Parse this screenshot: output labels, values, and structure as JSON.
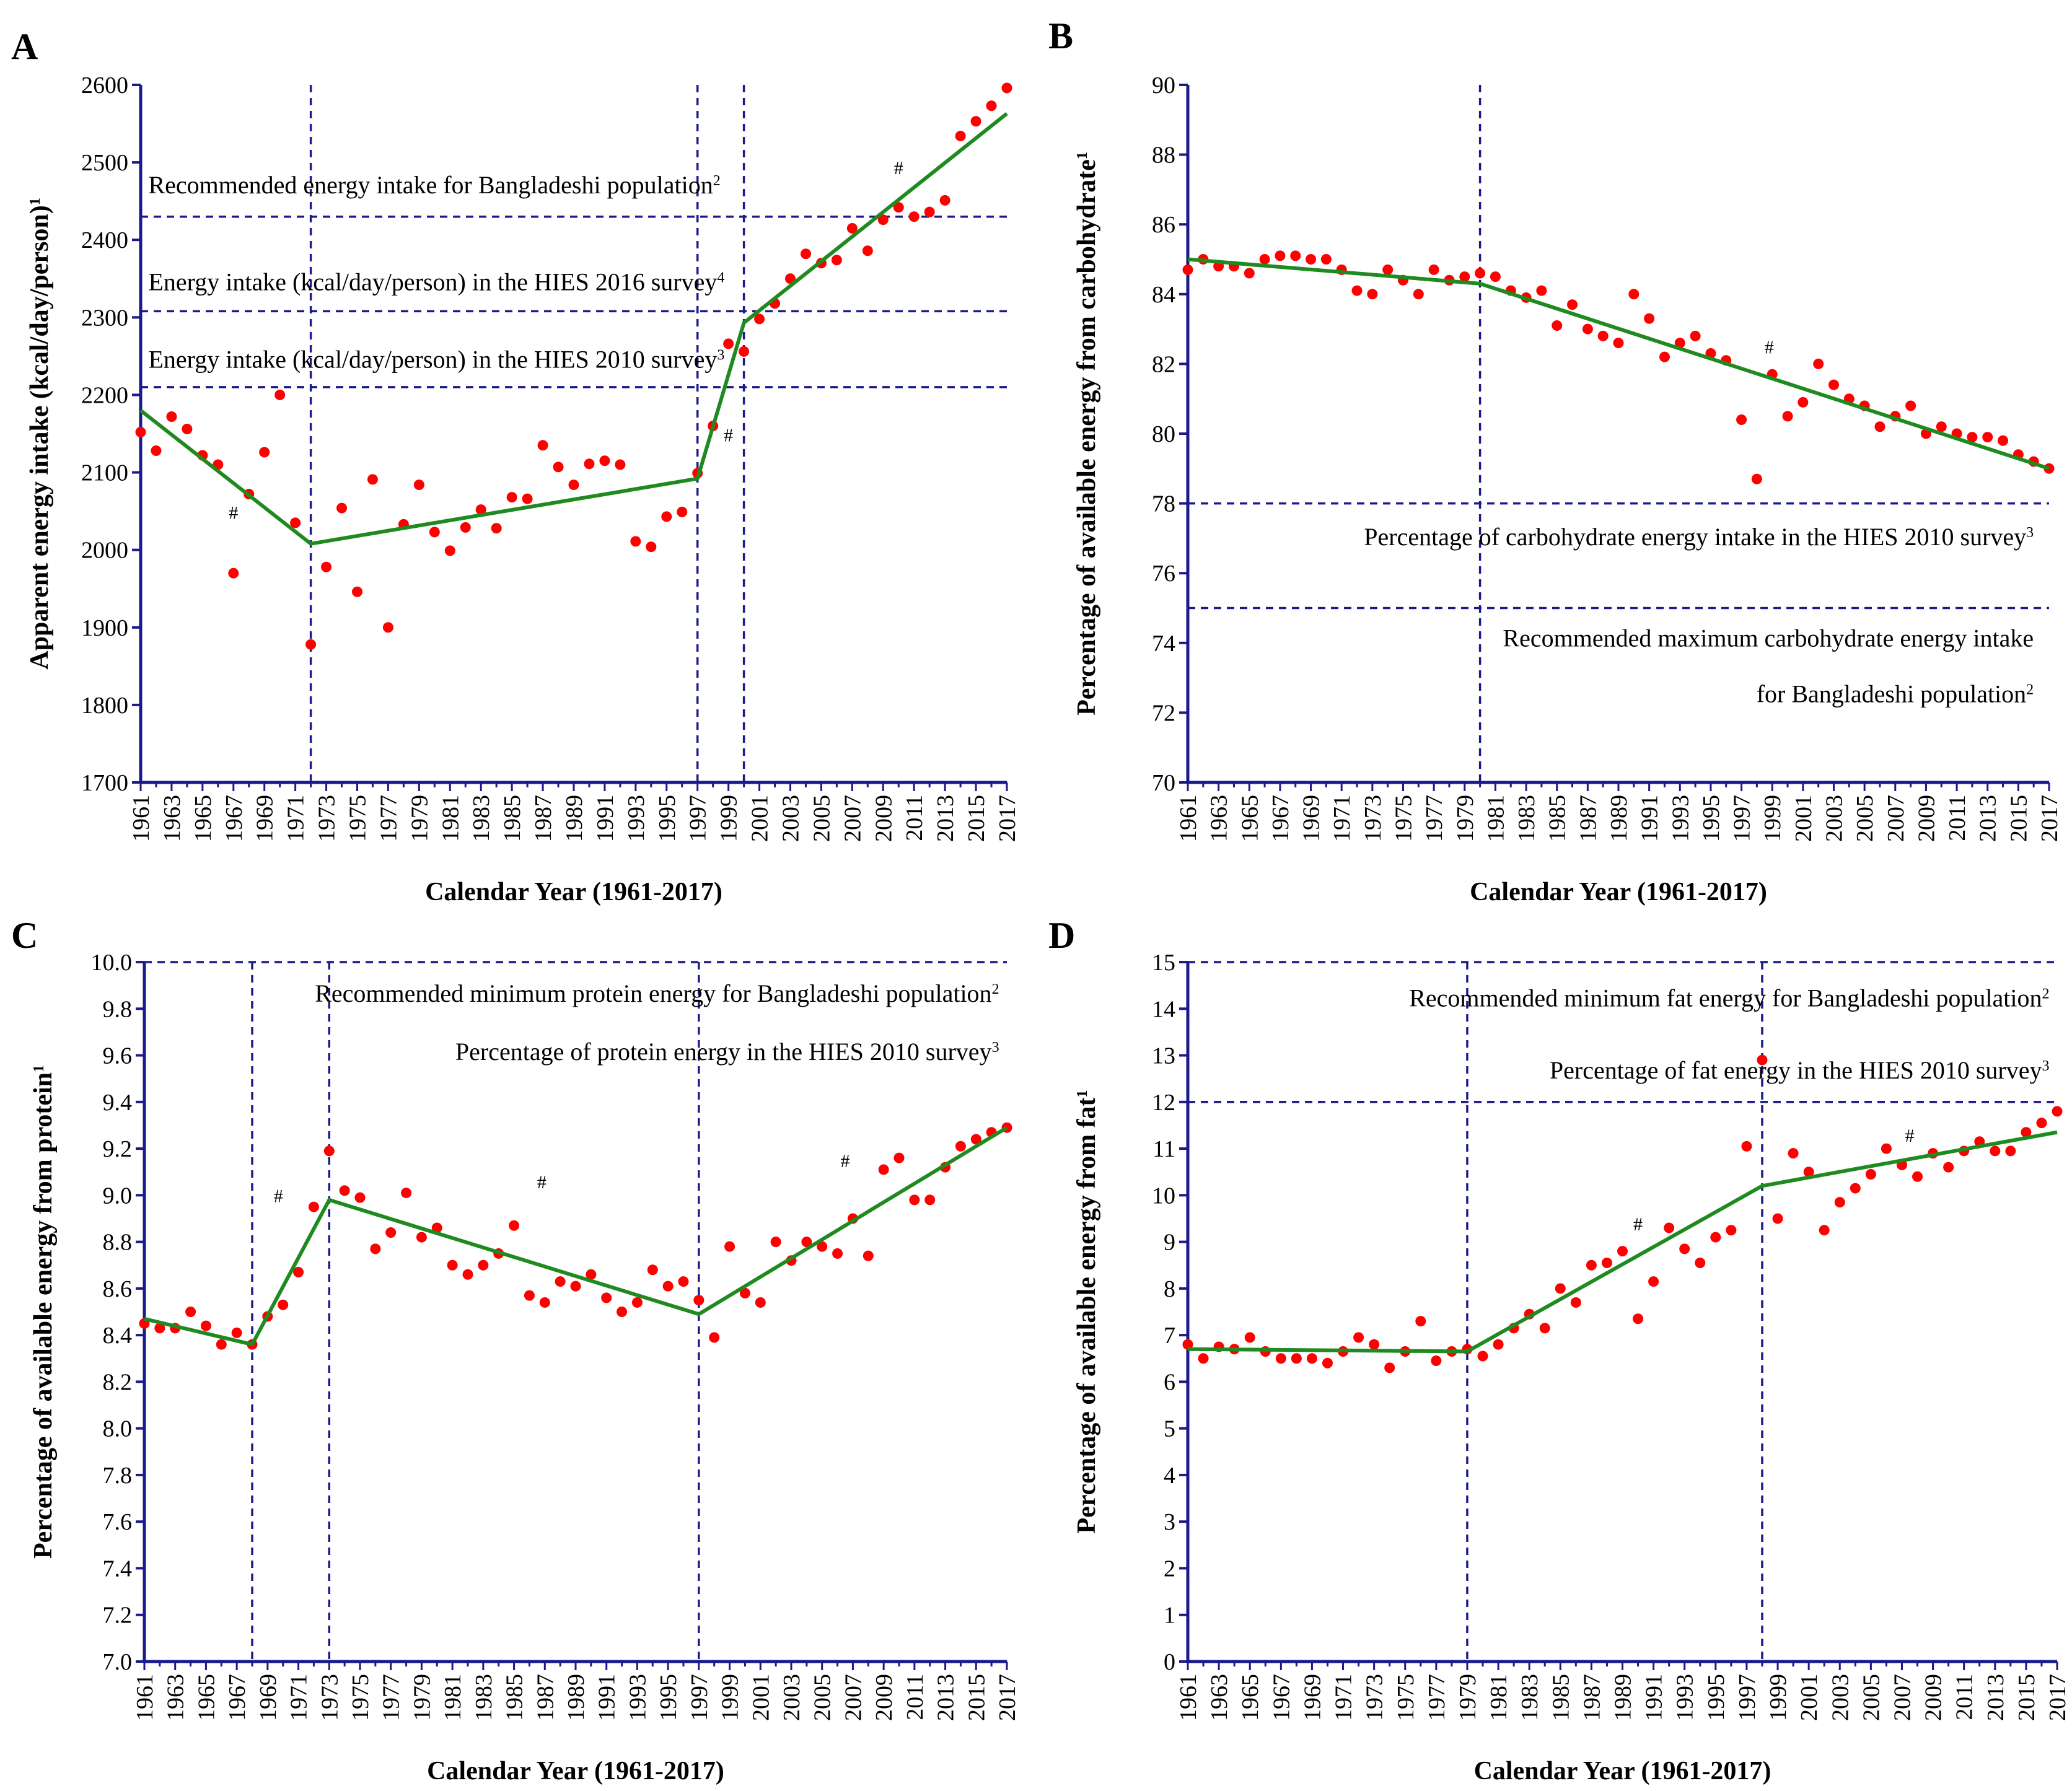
{
  "colors": {
    "axis": "#1a1a8c",
    "ref_line": "#1a1a8c",
    "points": "#ff0000",
    "trend": "#1f8a1f"
  },
  "chart_data": [
    {
      "panel": "A",
      "type": "scatter",
      "xlabel": "Calendar Year (1961-2017)",
      "ylabel": "Apparent energy intake (kcal/day/person)",
      "ylabel_sup": "1",
      "ylim": [
        1700,
        2600
      ],
      "yticks": [
        1700,
        1800,
        1900,
        2000,
        2100,
        2200,
        2300,
        2400,
        2500,
        2600
      ],
      "xticks": [
        1961,
        1963,
        1965,
        1967,
        1969,
        1971,
        1973,
        1975,
        1977,
        1979,
        1981,
        1983,
        1985,
        1987,
        1989,
        1991,
        1993,
        1995,
        1997,
        1999,
        2001,
        2003,
        2005,
        2007,
        2009,
        2011,
        2013,
        2015,
        2017
      ],
      "x": [
        1961,
        1962,
        1963,
        1964,
        1965,
        1966,
        1967,
        1968,
        1969,
        1970,
        1971,
        1972,
        1973,
        1974,
        1975,
        1976,
        1977,
        1978,
        1979,
        1980,
        1981,
        1982,
        1983,
        1984,
        1985,
        1986,
        1987,
        1988,
        1989,
        1990,
        1991,
        1992,
        1993,
        1994,
        1995,
        1996,
        1997,
        1998,
        1999,
        2000,
        2001,
        2002,
        2003,
        2004,
        2005,
        2006,
        2007,
        2008,
        2009,
        2010,
        2011,
        2012,
        2013,
        2014,
        2015,
        2016,
        2017
      ],
      "y": [
        2152,
        2128,
        2172,
        2156,
        2122,
        2110,
        1970,
        2072,
        2126,
        2200,
        2035,
        1878,
        1978,
        2054,
        1946,
        2091,
        1900,
        2033,
        2084,
        2023,
        1999,
        2029,
        2052,
        2028,
        2068,
        2066,
        2135,
        2107,
        2084,
        2111,
        2115,
        2110,
        2011,
        2004,
        2043,
        2049,
        2099,
        2160,
        2266,
        2256,
        2298,
        2318,
        2350,
        2382,
        2370,
        2374,
        2415,
        2386,
        2426,
        2442,
        2430,
        2436,
        2451,
        2534,
        2553,
        2573,
        2596
      ],
      "trend": [
        [
          1961,
          2180
        ],
        [
          1972,
          2008
        ],
        [
          1997,
          2092
        ],
        [
          2000,
          2293
        ],
        [
          2017,
          2563
        ]
      ],
      "vlines": [
        1972,
        1997,
        2000
      ],
      "hlines": [
        2430,
        2308,
        2210
      ],
      "hash_marks": [
        {
          "x": 1967,
          "y": 2040
        },
        {
          "x": 1999,
          "y": 2140
        },
        {
          "x": 2010,
          "y": 2485
        }
      ],
      "annotations": [
        {
          "text": "Recommended energy intake for Bangladeshi population",
          "sup": "2",
          "x": 1961.5,
          "y": 2460,
          "anchor": "start"
        },
        {
          "text": "Energy intake (kcal/day/person) in the HIES 2016 survey",
          "sup": "4",
          "x": 1961.5,
          "y": 2335,
          "anchor": "start"
        },
        {
          "text": "Energy intake (kcal/day/person) in the HIES 2010 survey",
          "sup": "3",
          "x": 1961.5,
          "y": 2235,
          "anchor": "start"
        }
      ]
    },
    {
      "panel": "B",
      "type": "scatter",
      "xlabel": "Calendar Year (1961-2017)",
      "ylabel": "Percentage of available energy from carbohydrate",
      "ylabel_sup": "1",
      "ylim": [
        70,
        90
      ],
      "yticks": [
        70,
        72,
        74,
        76,
        78,
        80,
        82,
        84,
        86,
        88,
        90
      ],
      "xticks": [
        1961,
        1963,
        1965,
        1967,
        1969,
        1971,
        1973,
        1975,
        1977,
        1979,
        1981,
        1983,
        1985,
        1987,
        1989,
        1991,
        1993,
        1995,
        1997,
        1999,
        2001,
        2003,
        2005,
        2007,
        2009,
        2011,
        2013,
        2015,
        2017
      ],
      "x": [
        1961,
        1962,
        1963,
        1964,
        1965,
        1966,
        1967,
        1968,
        1969,
        1970,
        1971,
        1972,
        1973,
        1974,
        1975,
        1976,
        1977,
        1978,
        1979,
        1980,
        1981,
        1982,
        1983,
        1984,
        1985,
        1986,
        1987,
        1988,
        1989,
        1990,
        1991,
        1992,
        1993,
        1994,
        1995,
        1996,
        1997,
        1998,
        1999,
        2000,
        2001,
        2002,
        2003,
        2004,
        2005,
        2006,
        2007,
        2008,
        2009,
        2010,
        2011,
        2012,
        2013,
        2014,
        2015,
        2016,
        2017
      ],
      "y": [
        84.7,
        85.0,
        84.8,
        84.8,
        84.6,
        85.0,
        85.1,
        85.1,
        85.0,
        85.0,
        84.7,
        84.1,
        84.0,
        84.7,
        84.4,
        84.0,
        84.7,
        84.4,
        84.5,
        84.6,
        84.5,
        84.1,
        83.9,
        84.1,
        83.1,
        83.7,
        83.0,
        82.8,
        82.6,
        84.0,
        83.3,
        82.2,
        82.6,
        82.8,
        82.3,
        82.1,
        80.4,
        78.7,
        81.7,
        80.5,
        80.9,
        82.0,
        81.4,
        81.0,
        80.8,
        80.2,
        80.5,
        80.8,
        80.0,
        80.2,
        80.0,
        79.9,
        79.9,
        79.8,
        79.4,
        79.2,
        79.0
      ],
      "trend": [
        [
          1961,
          85.0
        ],
        [
          1980,
          84.3
        ],
        [
          2017,
          79.0
        ]
      ],
      "vlines": [
        1980
      ],
      "hlines": [
        78,
        75
      ],
      "hash_marks": [
        {
          "x": 1998.8,
          "y": 82.3
        }
      ],
      "annotations": [
        {
          "text": "Percentage of carbohydrate energy intake in the HIES 2010 survey",
          "sup": "3",
          "x": 2016,
          "y": 76.8,
          "anchor": "end"
        },
        {
          "text": "Recommended maximum carbohydrate energy intake",
          "sup": "",
          "x": 2016,
          "y": 73.9,
          "anchor": "end"
        },
        {
          "text": "for Bangladeshi population",
          "sup": "2",
          "x": 2016,
          "y": 72.3,
          "anchor": "end"
        }
      ]
    },
    {
      "panel": "C",
      "type": "scatter",
      "xlabel": "Calendar Year (1961-2017)",
      "ylabel": "Percentage of available energy from protein",
      "ylabel_sup": "1",
      "ylim": [
        7.0,
        10.0
      ],
      "yticks": [
        7.0,
        7.2,
        7.4,
        7.6,
        7.8,
        8.0,
        8.2,
        8.4,
        8.6,
        8.8,
        9.0,
        9.2,
        9.4,
        9.6,
        9.8,
        10.0
      ],
      "xticks": [
        1961,
        1963,
        1965,
        1967,
        1969,
        1971,
        1973,
        1975,
        1977,
        1979,
        1981,
        1983,
        1985,
        1987,
        1989,
        1991,
        1993,
        1995,
        1997,
        1999,
        2001,
        2003,
        2005,
        2007,
        2009,
        2011,
        2013,
        2015,
        2017
      ],
      "x": [
        1961,
        1962,
        1963,
        1964,
        1965,
        1966,
        1967,
        1968,
        1969,
        1970,
        1971,
        1972,
        1973,
        1974,
        1975,
        1976,
        1977,
        1978,
        1979,
        1980,
        1981,
        1982,
        1983,
        1984,
        1985,
        1986,
        1987,
        1988,
        1989,
        1990,
        1991,
        1992,
        1993,
        1994,
        1995,
        1996,
        1997,
        1998,
        1999,
        2000,
        2001,
        2002,
        2003,
        2004,
        2005,
        2006,
        2007,
        2008,
        2009,
        2010,
        2011,
        2012,
        2013,
        2014,
        2015,
        2016,
        2017
      ],
      "y": [
        8.45,
        8.43,
        8.43,
        8.5,
        8.44,
        8.36,
        8.41,
        8.36,
        8.48,
        8.53,
        8.67,
        8.95,
        9.19,
        9.02,
        8.99,
        8.77,
        8.84,
        9.01,
        8.82,
        8.86,
        8.7,
        8.66,
        8.7,
        8.75,
        8.87,
        8.57,
        8.54,
        8.63,
        8.61,
        8.66,
        8.56,
        8.5,
        8.54,
        8.68,
        8.61,
        8.63,
        8.55,
        8.39,
        8.78,
        8.58,
        8.54,
        8.8,
        8.72,
        8.8,
        8.78,
        8.75,
        8.9,
        8.74,
        9.11,
        9.16,
        8.98,
        8.98,
        9.12,
        9.21,
        9.24,
        9.27,
        9.29
      ],
      "trend": [
        [
          1961,
          8.47
        ],
        [
          1968,
          8.36
        ],
        [
          1973,
          8.98
        ],
        [
          1997,
          8.49
        ],
        [
          2017,
          9.29
        ]
      ],
      "vlines": [
        1968,
        1973,
        1997
      ],
      "hlines": [
        10.0
      ],
      "hash_marks": [
        {
          "x": 1969.7,
          "y": 8.97
        },
        {
          "x": 1986.8,
          "y": 9.03
        },
        {
          "x": 2006.5,
          "y": 9.12
        }
      ],
      "annotations": [
        {
          "text": "Recommended minimum protein energy for Bangladeshi population",
          "sup": "2",
          "x": 2016.5,
          "y": 9.83,
          "anchor": "end"
        },
        {
          "text": "Percentage of protein energy in the HIES 2010 survey",
          "sup": "3",
          "x": 2016.5,
          "y": 9.58,
          "anchor": "end"
        }
      ]
    },
    {
      "panel": "D",
      "type": "scatter",
      "xlabel": "Calendar Year (1961-2017)",
      "ylabel": "Percentage of available energy from fat",
      "ylabel_sup": "1",
      "ylim": [
        0,
        15
      ],
      "yticks": [
        0,
        1,
        2,
        3,
        4,
        5,
        6,
        7,
        8,
        9,
        10,
        11,
        12,
        13,
        14,
        15
      ],
      "xticks": [
        1961,
        1963,
        1965,
        1967,
        1969,
        1971,
        1973,
        1975,
        1977,
        1979,
        1981,
        1983,
        1985,
        1987,
        1989,
        1991,
        1993,
        1995,
        1997,
        1999,
        2001,
        2003,
        2005,
        2007,
        2009,
        2011,
        2013,
        2015,
        2017
      ],
      "x": [
        1961,
        1962,
        1963,
        1964,
        1965,
        1966,
        1967,
        1968,
        1969,
        1970,
        1971,
        1972,
        1973,
        1974,
        1975,
        1976,
        1977,
        1978,
        1979,
        1980,
        1981,
        1982,
        1983,
        1984,
        1985,
        1986,
        1987,
        1988,
        1989,
        1990,
        1991,
        1992,
        1993,
        1994,
        1995,
        1996,
        1997,
        1998,
        1999,
        2000,
        2001,
        2002,
        2003,
        2004,
        2005,
        2006,
        2007,
        2008,
        2009,
        2010,
        2011,
        2012,
        2013,
        2014,
        2015,
        2016,
        2017
      ],
      "y": [
        6.8,
        6.5,
        6.75,
        6.7,
        6.95,
        6.65,
        6.5,
        6.5,
        6.5,
        6.4,
        6.65,
        6.95,
        6.8,
        6.3,
        6.65,
        7.3,
        6.45,
        6.65,
        6.7,
        6.55,
        6.8,
        7.15,
        7.45,
        7.15,
        8.0,
        7.7,
        8.5,
        8.55,
        8.8,
        7.35,
        8.15,
        9.3,
        8.85,
        8.55,
        9.1,
        9.25,
        11.05,
        12.9,
        9.5,
        10.9,
        10.5,
        9.25,
        9.85,
        10.15,
        10.45,
        11.0,
        10.65,
        10.4,
        10.9,
        10.6,
        10.95,
        11.15,
        10.95,
        10.95,
        11.35,
        11.55,
        11.8
      ],
      "trend": [
        [
          1961,
          6.7
        ],
        [
          1979,
          6.65
        ],
        [
          1998,
          10.2
        ],
        [
          2017,
          11.35
        ]
      ],
      "vlines": [
        1979,
        1998
      ],
      "hlines": [
        15,
        12
      ],
      "hash_marks": [
        {
          "x": 1990,
          "y": 9.25
        },
        {
          "x": 2007.5,
          "y": 11.15
        }
      ],
      "annotations": [
        {
          "text": "Recommended minimum fat energy for Bangladeshi population",
          "sup": "2",
          "x": 2016.5,
          "y": 14.05,
          "anchor": "end"
        },
        {
          "text": "Percentage of fat energy in the HIES 2010 survey",
          "sup": "3",
          "x": 2016.5,
          "y": 12.5,
          "anchor": "end"
        }
      ]
    }
  ]
}
